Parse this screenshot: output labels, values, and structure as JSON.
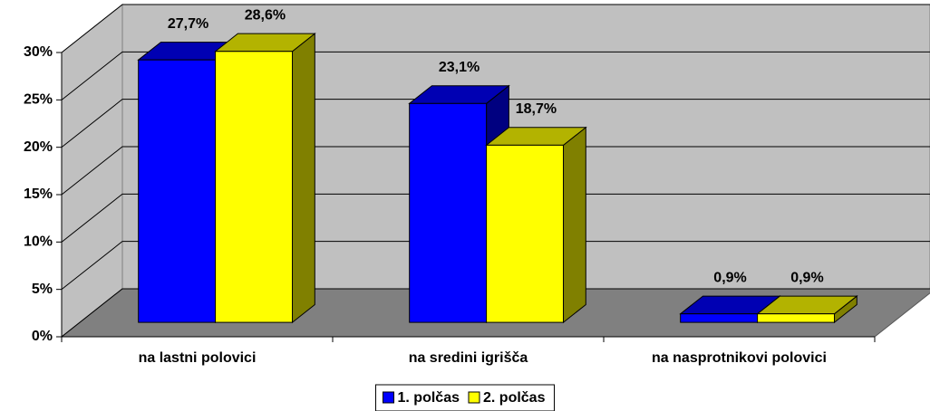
{
  "chart_data": {
    "type": "bar3d",
    "categories": [
      "na lastni polovici",
      "na sredini igrišča",
      "na nasprotnikovi polovici"
    ],
    "series": [
      {
        "name": "1. polčas",
        "color": "#0000ff",
        "values": [
          27.7,
          23.1,
          0.9
        ],
        "value_labels": [
          "27,7%",
          "23,1%",
          "0,9%"
        ]
      },
      {
        "name": "2. polčas",
        "color": "#ffff00",
        "values": [
          28.6,
          18.7,
          0.9
        ],
        "value_labels": [
          "28,6%",
          "18,7%",
          "0,9%"
        ]
      }
    ],
    "ylim": [
      0,
      30
    ],
    "yticks": [
      {
        "value": 0,
        "label": "0%"
      },
      {
        "value": 5,
        "label": "5%"
      },
      {
        "value": 10,
        "label": "10%"
      },
      {
        "value": 15,
        "label": "15%"
      },
      {
        "value": 20,
        "label": "20%"
      },
      {
        "value": 25,
        "label": "25%"
      },
      {
        "value": 30,
        "label": "30%"
      }
    ],
    "grid": true,
    "legend": "bottom"
  }
}
